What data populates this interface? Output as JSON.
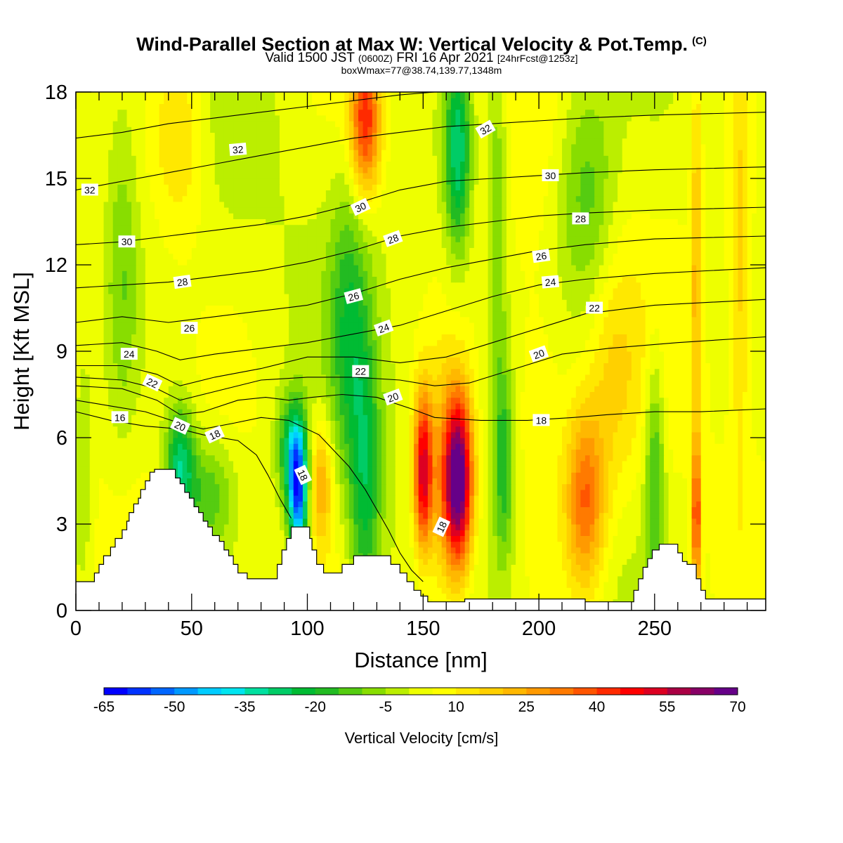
{
  "header": {
    "title": "Wind-Parallel Section at Max W: Vertical Velocity & Pot.Temp.",
    "title_mark": "(C)",
    "subtitle_main": "Valid 1500 JST",
    "subtitle_utc": "(0600Z)",
    "subtitle_date": "FRI 16 Apr 2021",
    "subtitle_fcst": "[24hrFcst@1253z]",
    "subnote": "boxWmax=77@38.74,139.77,1348m"
  },
  "chart_data": {
    "type": "heatmap",
    "xlabel": "Distance [nm]",
    "ylabel": "Height [Kft MSL]",
    "xlim": [
      0,
      298
    ],
    "ylim": [
      0,
      18
    ],
    "x_ticks": [
      0,
      50,
      100,
      150,
      200,
      250
    ],
    "y_ticks": [
      0,
      3,
      6,
      9,
      12,
      15,
      18
    ],
    "shaded_variable": "Vertical Velocity [cm/s]",
    "contour_variable": "Pot.Temp.",
    "colorbar": {
      "title": "Vertical Velocity [cm/s]",
      "tick_labels": [
        "-65",
        "-50",
        "-35",
        "-20",
        "-5",
        "10",
        "25",
        "40",
        "55",
        "70"
      ],
      "min": -65,
      "max": 70,
      "step": 5,
      "colors": [
        "#0000ff",
        "#0033ff",
        "#0066ff",
        "#0099ff",
        "#00ccff",
        "#00e5f0",
        "#00e0a0",
        "#00cc66",
        "#00bb33",
        "#22bb22",
        "#55cc11",
        "#88dd00",
        "#bbee00",
        "#eeff00",
        "#ffff00",
        "#ffe800",
        "#ffd000",
        "#ffb800",
        "#ff9a00",
        "#ff7a00",
        "#ff5500",
        "#ff2a00",
        "#ff0000",
        "#dd0022",
        "#aa0044",
        "#880066",
        "#660088"
      ]
    },
    "terrain_kft": [
      [
        0,
        1.0
      ],
      [
        5,
        1.0
      ],
      [
        8,
        1.3
      ],
      [
        10,
        1.6
      ],
      [
        12,
        1.9
      ],
      [
        15,
        2.2
      ],
      [
        17,
        2.5
      ],
      [
        20,
        2.8
      ],
      [
        22,
        3.1
      ],
      [
        23,
        3.4
      ],
      [
        25,
        3.7
      ],
      [
        27,
        3.9
      ],
      [
        28,
        4.2
      ],
      [
        30,
        4.5
      ],
      [
        32,
        4.8
      ],
      [
        34,
        4.9
      ],
      [
        42,
        4.9
      ],
      [
        43,
        4.6
      ],
      [
        45,
        4.4
      ],
      [
        47,
        4.1
      ],
      [
        49,
        3.9
      ],
      [
        51,
        3.6
      ],
      [
        53,
        3.4
      ],
      [
        55,
        3.1
      ],
      [
        57,
        2.9
      ],
      [
        59,
        2.6
      ],
      [
        62,
        2.4
      ],
      [
        64,
        2.1
      ],
      [
        66,
        1.9
      ],
      [
        68,
        1.6
      ],
      [
        70,
        1.3
      ],
      [
        74,
        1.1
      ],
      [
        85,
        1.1
      ],
      [
        87,
        1.6
      ],
      [
        89,
        2.1
      ],
      [
        91,
        2.5
      ],
      [
        93,
        2.9
      ],
      [
        100,
        2.9
      ],
      [
        101,
        2.5
      ],
      [
        102,
        2.1
      ],
      [
        104,
        1.6
      ],
      [
        107,
        1.3
      ],
      [
        112,
        1.3
      ],
      [
        115,
        1.6
      ],
      [
        120,
        1.9
      ],
      [
        133,
        1.9
      ],
      [
        136,
        1.6
      ],
      [
        140,
        1.3
      ],
      [
        143,
        1.0
      ],
      [
        146,
        0.7
      ],
      [
        149,
        0.5
      ],
      [
        152,
        0.3
      ],
      [
        160,
        0.3
      ],
      [
        168,
        0.4
      ],
      [
        190,
        0.4
      ],
      [
        220,
        0.3
      ],
      [
        240,
        0.3
      ],
      [
        241,
        0.7
      ],
      [
        243,
        1.1
      ],
      [
        245,
        1.5
      ],
      [
        247,
        1.8
      ],
      [
        249,
        2.1
      ],
      [
        252,
        2.3
      ],
      [
        258,
        2.3
      ],
      [
        260,
        2.0
      ],
      [
        262,
        1.7
      ],
      [
        264,
        1.6
      ],
      [
        267,
        1.6
      ],
      [
        268,
        1.1
      ],
      [
        270,
        0.7
      ],
      [
        272,
        0.4
      ],
      [
        298,
        0.4
      ]
    ],
    "w_features": [
      {
        "x": 165,
        "y": 4.5,
        "sx": 4.5,
        "sy": 2.2,
        "amp": 75
      },
      {
        "x": 150,
        "y": 4.8,
        "sx": 3.0,
        "sy": 2.0,
        "amp": 52
      },
      {
        "x": 157,
        "y": 4.0,
        "sx": 4.0,
        "sy": 3.5,
        "amp": 12
      },
      {
        "x": 220,
        "y": 3.8,
        "sx": 6.0,
        "sy": 2.2,
        "amp": 32
      },
      {
        "x": 268,
        "y": 3.2,
        "sx": 1.4,
        "sy": 1.8,
        "amp": 36
      },
      {
        "x": 96,
        "y": 4.2,
        "sx": 3.0,
        "sy": 1.6,
        "amp": -60
      },
      {
        "x": 92,
        "y": 5.6,
        "sx": 4.0,
        "sy": 1.3,
        "amp": -22
      },
      {
        "x": 45,
        "y": 5.0,
        "sx": 4.5,
        "sy": 1.5,
        "amp": -32
      },
      {
        "x": 57,
        "y": 4.0,
        "sx": 8.0,
        "sy": 1.4,
        "amp": -18
      },
      {
        "x": 106,
        "y": 4.5,
        "sx": 3.5,
        "sy": 1.5,
        "amp": 22
      },
      {
        "x": 125,
        "y": 4.0,
        "sx": 5.0,
        "sy": 3.5,
        "amp": -24
      },
      {
        "x": 118,
        "y": 10.0,
        "sx": 6.0,
        "sy": 3.5,
        "amp": -18
      },
      {
        "x": 165,
        "y": 16.0,
        "sx": 4.0,
        "sy": 2.5,
        "amp": -32
      },
      {
        "x": 125,
        "y": 17.0,
        "sx": 4.5,
        "sy": 1.8,
        "amp": 40
      },
      {
        "x": 45,
        "y": 16.5,
        "sx": 8.0,
        "sy": 2.5,
        "amp": 14
      },
      {
        "x": 220,
        "y": 14.5,
        "sx": 9.0,
        "sy": 3.0,
        "amp": -18
      },
      {
        "x": 185,
        "y": 5.0,
        "sx": 3.0,
        "sy": 2.5,
        "amp": -20
      },
      {
        "x": 250,
        "y": 5.0,
        "sx": 3.0,
        "sy": 3.0,
        "amp": -20
      },
      {
        "x": 182,
        "y": 14.0,
        "sx": 3.0,
        "sy": 5.0,
        "amp": -14
      },
      {
        "x": 268,
        "y": 12.0,
        "sx": 1.5,
        "sy": 5.0,
        "amp": 18
      },
      {
        "x": 287,
        "y": 12.0,
        "sx": 3.0,
        "sy": 5.0,
        "amp": 14
      },
      {
        "x": 20,
        "y": 12.0,
        "sx": 5.0,
        "sy": 4.0,
        "amp": -12
      },
      {
        "x": 3,
        "y": 5.0,
        "sx": 3.0,
        "sy": 3.0,
        "amp": -10
      },
      {
        "x": 232,
        "y": 8.0,
        "sx": 8.0,
        "sy": 3.0,
        "amp": 10
      },
      {
        "x": 200,
        "y": 7.0,
        "sx": 10.0,
        "sy": 3.5,
        "amp": 8
      }
    ],
    "theta_contours": [
      {
        "value": 16,
        "points": [
          [
            0,
            6.9
          ],
          [
            15,
            6.6
          ],
          [
            30,
            6.4
          ],
          [
            45,
            6.3
          ],
          [
            55,
            6.1
          ],
          [
            70,
            5.9
          ],
          [
            78,
            5.4
          ],
          [
            83,
            4.7
          ],
          [
            88,
            3.9
          ],
          [
            93,
            3.2
          ]
        ]
      },
      {
        "value": 18,
        "points": [
          [
            0,
            7.3
          ],
          [
            15,
            7.1
          ],
          [
            30,
            6.9
          ],
          [
            45,
            6.5
          ],
          [
            55,
            6.3
          ],
          [
            68,
            6.5
          ],
          [
            80,
            6.7
          ],
          [
            92,
            6.6
          ],
          [
            105,
            6.1
          ],
          [
            118,
            5.0
          ],
          [
            125,
            4.2
          ],
          [
            130,
            3.5
          ],
          [
            135,
            2.8
          ],
          [
            140,
            2.0
          ],
          [
            145,
            1.4
          ],
          [
            150,
            1.0
          ]
        ]
      },
      {
        "value": 20,
        "points": [
          [
            0,
            7.8
          ],
          [
            20,
            7.7
          ],
          [
            35,
            7.3
          ],
          [
            45,
            6.8
          ],
          [
            55,
            6.9
          ],
          [
            70,
            7.3
          ],
          [
            82,
            7.4
          ],
          [
            92,
            7.3
          ],
          [
            102,
            7.4
          ],
          [
            115,
            7.5
          ],
          [
            130,
            7.4
          ],
          [
            145,
            7.0
          ],
          [
            155,
            6.7
          ],
          [
            175,
            6.6
          ],
          [
            195,
            6.6
          ],
          [
            215,
            6.7
          ],
          [
            230,
            6.8
          ],
          [
            250,
            6.9
          ],
          [
            270,
            6.9
          ],
          [
            298,
            7.0
          ]
        ]
      },
      {
        "value": 20,
        "points": [
          [
            0,
            8.1
          ],
          [
            20,
            8.0
          ],
          [
            35,
            7.7
          ],
          [
            45,
            7.3
          ],
          [
            60,
            7.6
          ],
          [
            80,
            8.0
          ],
          [
            100,
            8.1
          ],
          [
            120,
            8.1
          ],
          [
            140,
            8.0
          ],
          [
            155,
            7.8
          ],
          [
            170,
            7.9
          ],
          [
            190,
            8.4
          ],
          [
            210,
            8.9
          ],
          [
            230,
            9.1
          ],
          [
            260,
            9.3
          ],
          [
            298,
            9.5
          ]
        ]
      },
      {
        "value": 22,
        "points": [
          [
            0,
            8.5
          ],
          [
            20,
            8.5
          ],
          [
            35,
            8.2
          ],
          [
            45,
            7.8
          ],
          [
            60,
            8.1
          ],
          [
            80,
            8.4
          ],
          [
            100,
            8.8
          ],
          [
            120,
            8.8
          ],
          [
            140,
            8.6
          ],
          [
            160,
            8.8
          ],
          [
            180,
            9.3
          ],
          [
            200,
            9.8
          ],
          [
            220,
            10.3
          ],
          [
            250,
            10.6
          ],
          [
            298,
            10.8
          ]
        ]
      },
      {
        "value": 24,
        "points": [
          [
            0,
            9.2
          ],
          [
            20,
            9.3
          ],
          [
            35,
            9.0
          ],
          [
            45,
            8.7
          ],
          [
            60,
            8.9
          ],
          [
            80,
            9.1
          ],
          [
            100,
            9.3
          ],
          [
            120,
            9.6
          ],
          [
            140,
            9.9
          ],
          [
            160,
            10.4
          ],
          [
            180,
            10.9
          ],
          [
            200,
            11.3
          ],
          [
            220,
            11.5
          ],
          [
            250,
            11.7
          ],
          [
            298,
            11.9
          ]
        ]
      },
      {
        "value": 26,
        "points": [
          [
            0,
            10.0
          ],
          [
            20,
            10.2
          ],
          [
            40,
            10.0
          ],
          [
            60,
            10.2
          ],
          [
            80,
            10.4
          ],
          [
            100,
            10.6
          ],
          [
            120,
            11.0
          ],
          [
            140,
            11.5
          ],
          [
            160,
            11.9
          ],
          [
            180,
            12.2
          ],
          [
            200,
            12.5
          ],
          [
            220,
            12.7
          ],
          [
            250,
            12.9
          ],
          [
            298,
            13.0
          ]
        ]
      },
      {
        "value": 28,
        "points": [
          [
            0,
            11.2
          ],
          [
            20,
            11.3
          ],
          [
            40,
            11.4
          ],
          [
            60,
            11.6
          ],
          [
            80,
            11.8
          ],
          [
            100,
            12.1
          ],
          [
            120,
            12.5
          ],
          [
            140,
            13.0
          ],
          [
            160,
            13.3
          ],
          [
            180,
            13.5
          ],
          [
            200,
            13.7
          ],
          [
            220,
            13.8
          ],
          [
            250,
            13.9
          ],
          [
            298,
            14.0
          ]
        ]
      },
      {
        "value": 30,
        "points": [
          [
            0,
            12.7
          ],
          [
            20,
            12.8
          ],
          [
            40,
            13.0
          ],
          [
            60,
            13.2
          ],
          [
            80,
            13.4
          ],
          [
            100,
            13.7
          ],
          [
            120,
            14.1
          ],
          [
            140,
            14.6
          ],
          [
            160,
            14.9
          ],
          [
            180,
            15.0
          ],
          [
            200,
            15.1
          ],
          [
            220,
            15.2
          ],
          [
            250,
            15.3
          ],
          [
            298,
            15.4
          ]
        ]
      },
      {
        "value": 32,
        "points": [
          [
            0,
            14.6
          ],
          [
            20,
            14.9
          ],
          [
            40,
            15.2
          ],
          [
            60,
            15.5
          ],
          [
            80,
            15.8
          ],
          [
            100,
            16.1
          ],
          [
            120,
            16.4
          ],
          [
            140,
            16.6
          ],
          [
            160,
            16.8
          ],
          [
            180,
            16.9
          ],
          [
            200,
            17.0
          ],
          [
            220,
            17.1
          ],
          [
            250,
            17.2
          ],
          [
            298,
            17.3
          ]
        ]
      },
      {
        "value": 32,
        "points": [
          [
            0,
            16.4
          ],
          [
            20,
            16.6
          ],
          [
            40,
            16.9
          ],
          [
            60,
            17.1
          ],
          [
            80,
            17.3
          ],
          [
            100,
            17.5
          ],
          [
            120,
            17.7
          ],
          [
            140,
            17.9
          ],
          [
            155,
            18.0
          ]
        ]
      }
    ],
    "contour_labels": [
      {
        "text": "32",
        "x": 70,
        "y": 16.0,
        "angle": -5
      },
      {
        "text": "32",
        "x": 6,
        "y": 14.6,
        "angle": 0
      },
      {
        "text": "32",
        "x": 177,
        "y": 16.7,
        "angle": -30
      },
      {
        "text": "30",
        "x": 22,
        "y": 12.8,
        "angle": 0
      },
      {
        "text": "30",
        "x": 123,
        "y": 14.0,
        "angle": -25
      },
      {
        "text": "30",
        "x": 205,
        "y": 15.1,
        "angle": 0
      },
      {
        "text": "28",
        "x": 46,
        "y": 11.4,
        "angle": -8
      },
      {
        "text": "28",
        "x": 137,
        "y": 12.9,
        "angle": -20
      },
      {
        "text": "28",
        "x": 218,
        "y": 13.6,
        "angle": 0
      },
      {
        "text": "26",
        "x": 49,
        "y": 9.8,
        "angle": 0
      },
      {
        "text": "26",
        "x": 120,
        "y": 10.9,
        "angle": -15
      },
      {
        "text": "26",
        "x": 201,
        "y": 12.3,
        "angle": -8
      },
      {
        "text": "24",
        "x": 23,
        "y": 8.9,
        "angle": 0
      },
      {
        "text": "24",
        "x": 133,
        "y": 9.8,
        "angle": -20
      },
      {
        "text": "24",
        "x": 205,
        "y": 11.4,
        "angle": -5
      },
      {
        "text": "22",
        "x": 33,
        "y": 7.9,
        "angle": 25
      },
      {
        "text": "22",
        "x": 123,
        "y": 8.3,
        "angle": 0
      },
      {
        "text": "22",
        "x": 224,
        "y": 10.5,
        "angle": 0
      },
      {
        "text": "20",
        "x": 45,
        "y": 6.4,
        "angle": 25
      },
      {
        "text": "20",
        "x": 137,
        "y": 7.4,
        "angle": -20
      },
      {
        "text": "20",
        "x": 200,
        "y": 8.9,
        "angle": -20
      },
      {
        "text": "18",
        "x": 60,
        "y": 6.1,
        "angle": -25
      },
      {
        "text": "18",
        "x": 98,
        "y": 4.7,
        "angle": 65
      },
      {
        "text": "18",
        "x": 158,
        "y": 2.9,
        "angle": -65
      },
      {
        "text": "18",
        "x": 201,
        "y": 6.6,
        "angle": 0
      },
      {
        "text": "16",
        "x": 19,
        "y": 6.7,
        "angle": 0
      }
    ]
  }
}
